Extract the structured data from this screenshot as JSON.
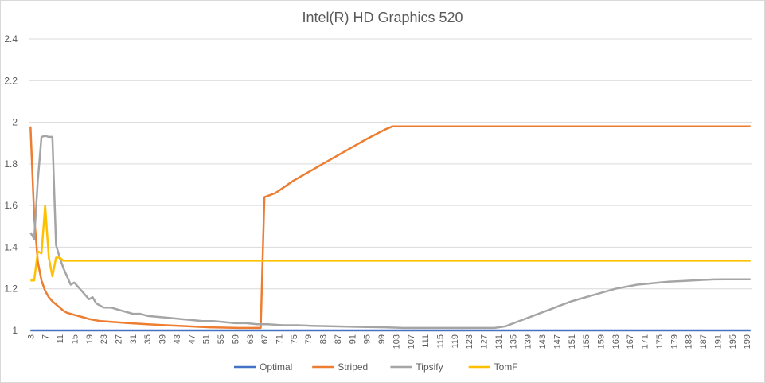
{
  "chart_data": {
    "type": "line",
    "title": "Intel(R) HD Graphics 520",
    "xlabel": "",
    "ylabel": "",
    "ylim": [
      1,
      2.4
    ],
    "yticks": [
      "1",
      "1.2",
      "1.4",
      "1.6",
      "1.8",
      "2",
      "2.2",
      "2.4"
    ],
    "xlim": [
      3,
      200
    ],
    "xticks": [
      "3",
      "7",
      "11",
      "15",
      "19",
      "23",
      "27",
      "31",
      "35",
      "39",
      "43",
      "47",
      "51",
      "55",
      "59",
      "63",
      "67",
      "71",
      "75",
      "79",
      "83",
      "87",
      "91",
      "95",
      "99",
      "103",
      "107",
      "111",
      "115",
      "119",
      "123",
      "127",
      "131",
      "135",
      "139",
      "143",
      "147",
      "151",
      "155",
      "159",
      "163",
      "167",
      "171",
      "175",
      "179",
      "183",
      "187",
      "191",
      "195",
      "199"
    ],
    "grid": "horizontal",
    "legend_position": "bottom",
    "series": [
      {
        "name": "Optimal",
        "color": "#4472c4",
        "points": [
          [
            3,
            1.0
          ],
          [
            200,
            1.0
          ]
        ]
      },
      {
        "name": "Striped",
        "color": "#ed7d31",
        "points": [
          [
            3,
            1.98
          ],
          [
            4,
            1.55
          ],
          [
            5,
            1.33
          ],
          [
            6,
            1.24
          ],
          [
            7,
            1.19
          ],
          [
            8,
            1.16
          ],
          [
            9,
            1.14
          ],
          [
            10,
            1.125
          ],
          [
            11,
            1.11
          ],
          [
            12,
            1.095
          ],
          [
            13,
            1.085
          ],
          [
            15,
            1.075
          ],
          [
            17,
            1.065
          ],
          [
            19,
            1.055
          ],
          [
            22,
            1.045
          ],
          [
            26,
            1.04
          ],
          [
            30,
            1.035
          ],
          [
            35,
            1.03
          ],
          [
            40,
            1.025
          ],
          [
            46,
            1.02
          ],
          [
            52,
            1.015
          ],
          [
            60,
            1.012
          ],
          [
            66,
            1.012
          ],
          [
            67,
            1.64
          ],
          [
            70,
            1.66
          ],
          [
            75,
            1.72
          ],
          [
            80,
            1.77
          ],
          [
            85,
            1.82
          ],
          [
            90,
            1.87
          ],
          [
            95,
            1.92
          ],
          [
            100,
            1.965
          ],
          [
            102,
            1.98
          ],
          [
            200,
            1.98
          ]
        ]
      },
      {
        "name": "Tipsify",
        "color": "#a5a5a5",
        "points": [
          [
            3,
            1.47
          ],
          [
            4,
            1.44
          ],
          [
            5,
            1.72
          ],
          [
            6,
            1.93
          ],
          [
            7,
            1.935
          ],
          [
            8,
            1.93
          ],
          [
            9,
            1.93
          ],
          [
            10,
            1.41
          ],
          [
            11,
            1.35
          ],
          [
            12,
            1.3
          ],
          [
            13,
            1.26
          ],
          [
            14,
            1.22
          ],
          [
            15,
            1.23
          ],
          [
            16,
            1.21
          ],
          [
            17,
            1.19
          ],
          [
            18,
            1.17
          ],
          [
            19,
            1.15
          ],
          [
            20,
            1.16
          ],
          [
            21,
            1.13
          ],
          [
            22,
            1.12
          ],
          [
            23,
            1.11
          ],
          [
            25,
            1.11
          ],
          [
            27,
            1.1
          ],
          [
            29,
            1.09
          ],
          [
            31,
            1.08
          ],
          [
            33,
            1.08
          ],
          [
            35,
            1.07
          ],
          [
            38,
            1.065
          ],
          [
            41,
            1.06
          ],
          [
            44,
            1.055
          ],
          [
            47,
            1.05
          ],
          [
            50,
            1.045
          ],
          [
            53,
            1.045
          ],
          [
            56,
            1.04
          ],
          [
            59,
            1.035
          ],
          [
            62,
            1.035
          ],
          [
            65,
            1.03
          ],
          [
            68,
            1.03
          ],
          [
            72,
            1.025
          ],
          [
            76,
            1.025
          ],
          [
            80,
            1.022
          ],
          [
            85,
            1.02
          ],
          [
            90,
            1.018
          ],
          [
            95,
            1.016
          ],
          [
            100,
            1.015
          ],
          [
            105,
            1.012
          ],
          [
            110,
            1.012
          ],
          [
            115,
            1.012
          ],
          [
            120,
            1.012
          ],
          [
            125,
            1.012
          ],
          [
            130,
            1.012
          ],
          [
            133,
            1.02
          ],
          [
            136,
            1.04
          ],
          [
            139,
            1.06
          ],
          [
            142,
            1.08
          ],
          [
            145,
            1.1
          ],
          [
            148,
            1.12
          ],
          [
            151,
            1.14
          ],
          [
            154,
            1.155
          ],
          [
            157,
            1.17
          ],
          [
            160,
            1.185
          ],
          [
            163,
            1.2
          ],
          [
            166,
            1.21
          ],
          [
            169,
            1.22
          ],
          [
            172,
            1.225
          ],
          [
            175,
            1.23
          ],
          [
            178,
            1.235
          ],
          [
            181,
            1.237
          ],
          [
            184,
            1.24
          ],
          [
            187,
            1.243
          ],
          [
            190,
            1.245
          ],
          [
            193,
            1.246
          ],
          [
            196,
            1.246
          ],
          [
            200,
            1.246
          ]
        ]
      },
      {
        "name": "TomF",
        "color": "#ffc000",
        "points": [
          [
            3,
            1.24
          ],
          [
            4,
            1.24
          ],
          [
            5,
            1.38
          ],
          [
            6,
            1.37
          ],
          [
            7,
            1.6
          ],
          [
            8,
            1.35
          ],
          [
            9,
            1.26
          ],
          [
            10,
            1.35
          ],
          [
            11,
            1.35
          ],
          [
            12,
            1.335
          ],
          [
            20,
            1.335
          ],
          [
            200,
            1.335
          ]
        ]
      }
    ]
  }
}
